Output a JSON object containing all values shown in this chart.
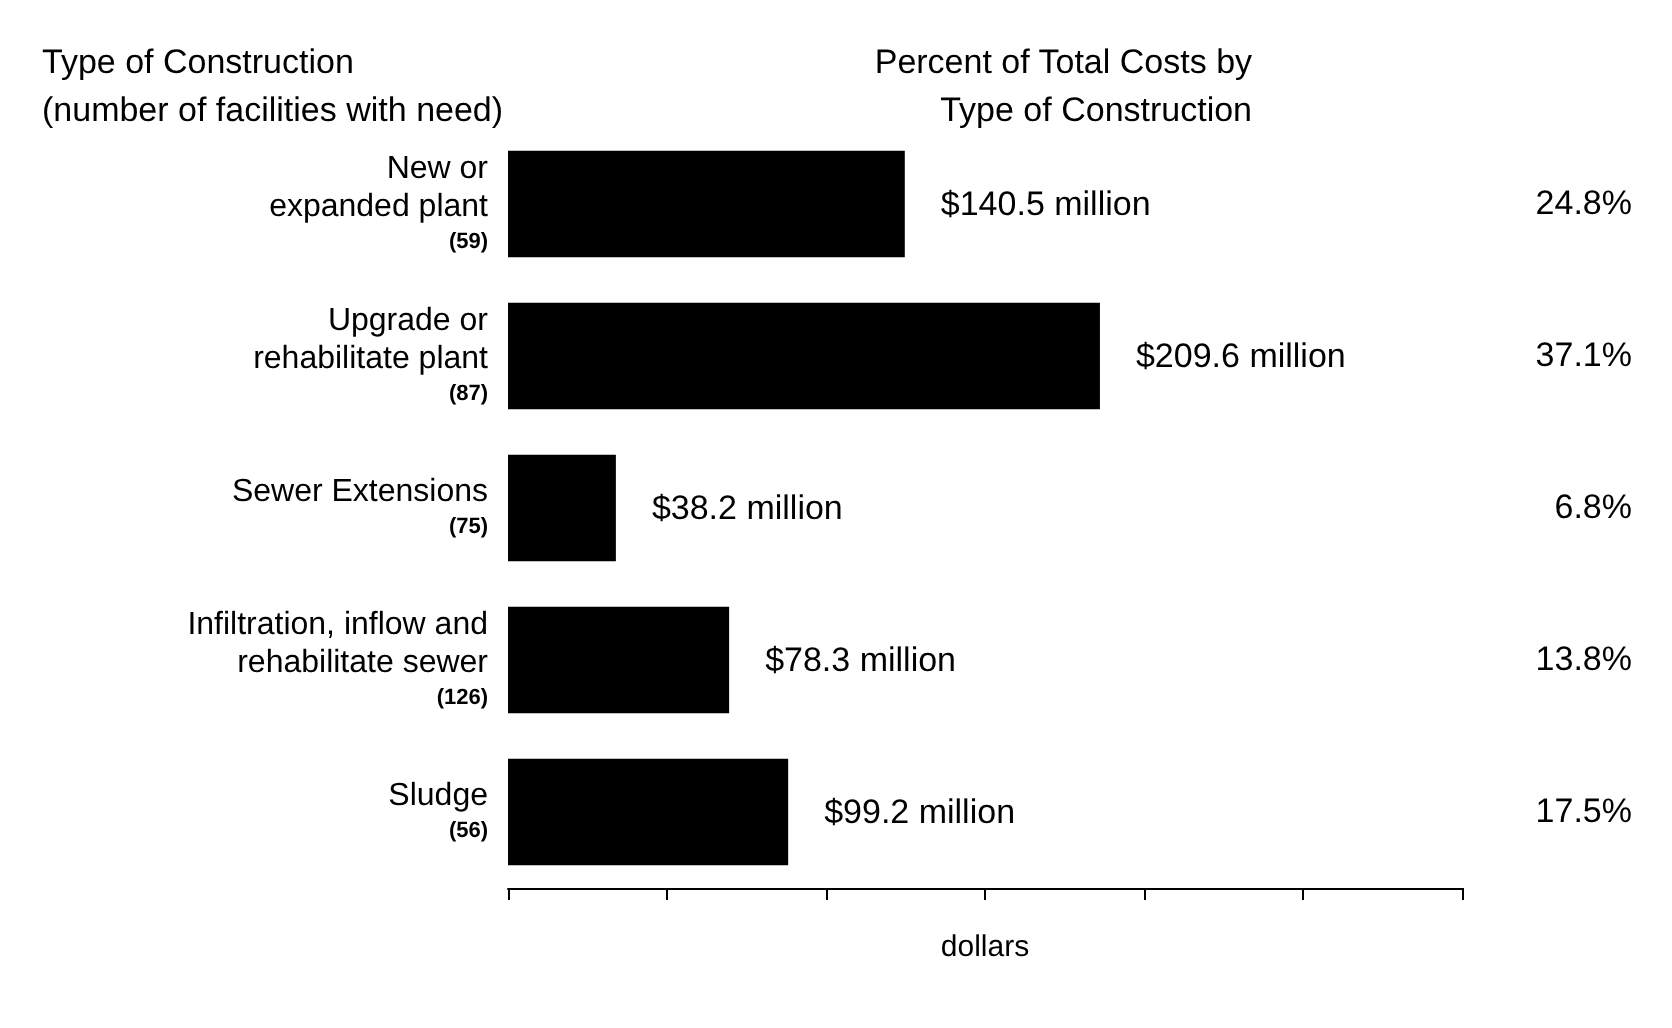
{
  "chart_data": {
    "type": "bar",
    "orientation": "horizontal",
    "title": "Type of Construction\n(number of facilities with need)",
    "subtitle": "Percent of Total Costs by\nType of Construction",
    "xlabel": "dollars",
    "categories": [
      "New or\nexpanded plant\n(59)",
      "Upgrade or\nrehabilitate plant\n(87)",
      "Sewer Extensions\n(75)",
      "Infiltration, inflow and\nrehabilitate sewer\n(126)",
      "Sludge\n(56)"
    ],
    "values": [
      140.5,
      209.6,
      38.2,
      78.3,
      99.2
    ],
    "value_labels": [
      "$140.5 million",
      "$209.6 million",
      "$38.2 million",
      "$78.3 million",
      "$99.2 million"
    ],
    "color": "#000000",
    "xlim": [
      0,
      337.8
    ],
    "xticks": [
      {
        "value": 0,
        "label": null
      },
      {
        "value": 56.3,
        "label": null
      },
      {
        "value": 112.6,
        "label": null
      },
      {
        "value": 168.9,
        "label": null
      },
      {
        "value": 225.2,
        "label": null
      },
      {
        "value": 281.5,
        "label": null
      },
      {
        "value": 337.8,
        "label": null
      }
    ],
    "grid": false,
    "annotations": [
      "24.8%",
      "37.1%",
      "6.8%",
      "13.8%",
      "17.5%"
    ]
  }
}
